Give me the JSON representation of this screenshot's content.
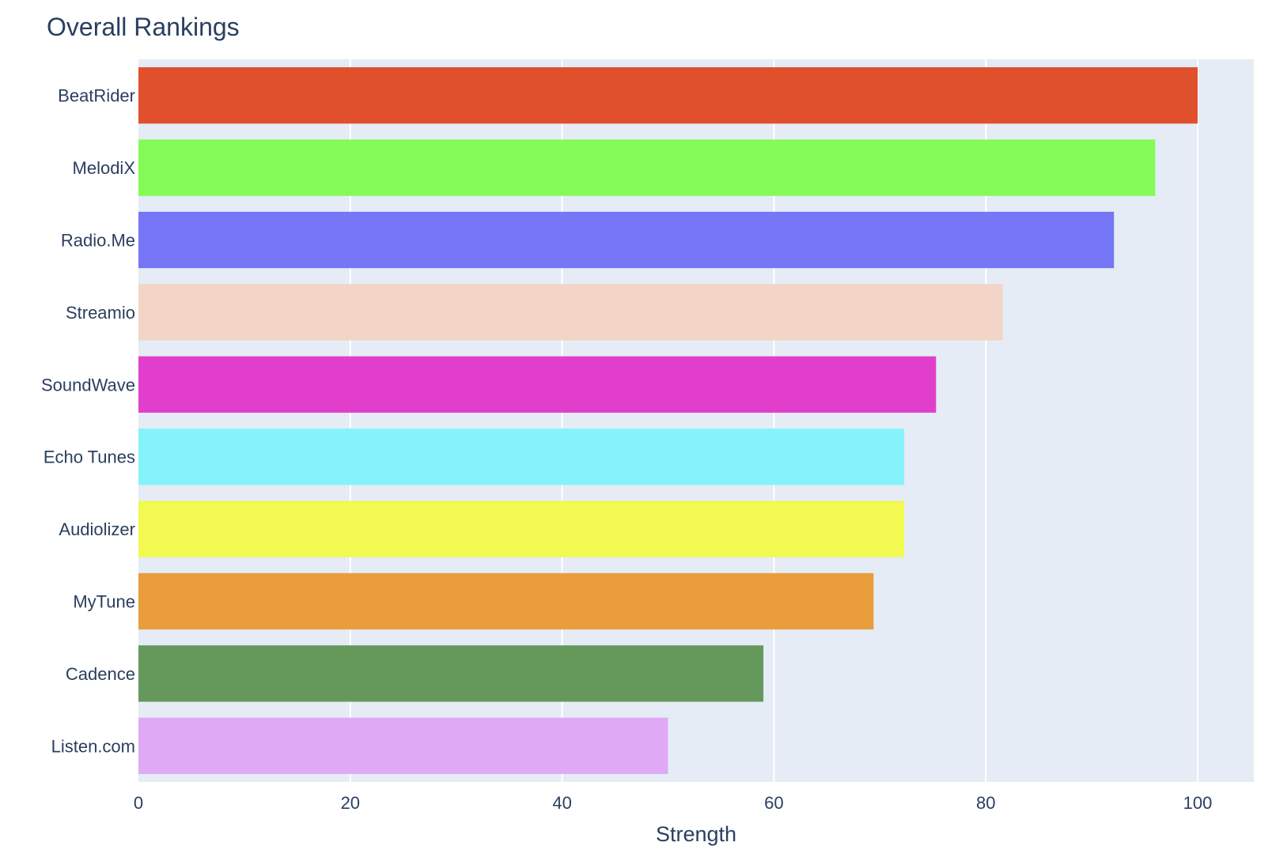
{
  "chart_data": {
    "type": "bar",
    "orientation": "horizontal",
    "title": "Overall Rankings",
    "xlabel": "Strength",
    "ylabel": "",
    "xlim": [
      0,
      105.3
    ],
    "xticks": [
      0,
      20,
      40,
      60,
      80,
      100
    ],
    "grid": true,
    "legend": "none",
    "plot_background": "#e5ecf6",
    "categories": [
      "BeatRider",
      "MelodiX",
      "Radio.Me",
      "Streamio",
      "SoundWave",
      "Echo Tunes",
      "Audiolizer",
      "MyTune",
      "Cadence",
      "Listen.com"
    ],
    "values": [
      100,
      96,
      92.1,
      81.6,
      75.3,
      72.3,
      72.3,
      69.4,
      59,
      50
    ],
    "colors": [
      "#e0502d",
      "#84fb56",
      "#7577f7",
      "#f2d5c6",
      "#e23ecc",
      "#86f3fb",
      "#f2f951",
      "#e99d3b",
      "#65995b",
      "#e0a9f5"
    ]
  }
}
